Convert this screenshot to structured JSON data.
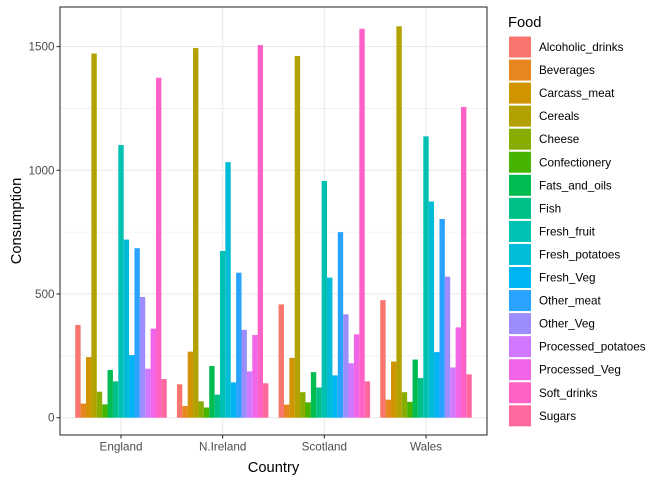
{
  "chart_data": {
    "type": "bar",
    "layout": "grouped",
    "title": "",
    "xlabel": "Country",
    "ylabel": "Consumption",
    "ylim": [
      -70,
      1660
    ],
    "yticks": [
      0,
      500,
      1000,
      1500
    ],
    "ytick_labels": [
      "0",
      "500",
      "1000",
      "1500"
    ],
    "grid": true,
    "legend_title": "Food",
    "legend_position": "right",
    "categories": [
      "England",
      "N.Ireland",
      "Scotland",
      "Wales"
    ],
    "series": [
      {
        "name": "Alcoholic_drinks",
        "color": "#F8766D",
        "values": [
          375,
          135,
          458,
          475
        ]
      },
      {
        "name": "Beverages",
        "color": "#E7851E",
        "values": [
          57,
          47,
          53,
          73
        ]
      },
      {
        "name": "Carcass_meat",
        "color": "#D09400",
        "values": [
          245,
          267,
          242,
          227
        ]
      },
      {
        "name": "Cereals",
        "color": "#B2A100",
        "values": [
          1472,
          1494,
          1462,
          1582
        ]
      },
      {
        "name": "Cheese",
        "color": "#89AC00",
        "values": [
          105,
          66,
          103,
          103
        ]
      },
      {
        "name": "Confectionery",
        "color": "#45B500",
        "values": [
          54,
          41,
          62,
          64
        ]
      },
      {
        "name": "Fats_and_oils",
        "color": "#00BC51",
        "values": [
          193,
          209,
          184,
          235
        ]
      },
      {
        "name": "Fish",
        "color": "#00C087",
        "values": [
          147,
          93,
          122,
          160
        ]
      },
      {
        "name": "Fresh_fruit",
        "color": "#00C0B2",
        "values": [
          1102,
          674,
          957,
          1137
        ]
      },
      {
        "name": "Fresh_potatoes",
        "color": "#00BCD6",
        "values": [
          720,
          1033,
          566,
          874
        ]
      },
      {
        "name": "Fresh_Veg",
        "color": "#00B3F2",
        "values": [
          253,
          143,
          171,
          265
        ]
      },
      {
        "name": "Other_meat",
        "color": "#29A3FF",
        "values": [
          685,
          586,
          750,
          803
        ]
      },
      {
        "name": "Other_Veg",
        "color": "#9C8DFF",
        "values": [
          488,
          355,
          418,
          570
        ]
      },
      {
        "name": "Processed_potatoes",
        "color": "#D277FF",
        "values": [
          198,
          187,
          220,
          203
        ]
      },
      {
        "name": "Processed_Veg",
        "color": "#F166E8",
        "values": [
          360,
          334,
          337,
          365
        ]
      },
      {
        "name": "Soft_drinks",
        "color": "#FF61C7",
        "values": [
          1374,
          1506,
          1572,
          1256
        ]
      },
      {
        "name": "Sugars",
        "color": "#FF689E",
        "values": [
          156,
          139,
          147,
          175
        ]
      }
    ]
  }
}
